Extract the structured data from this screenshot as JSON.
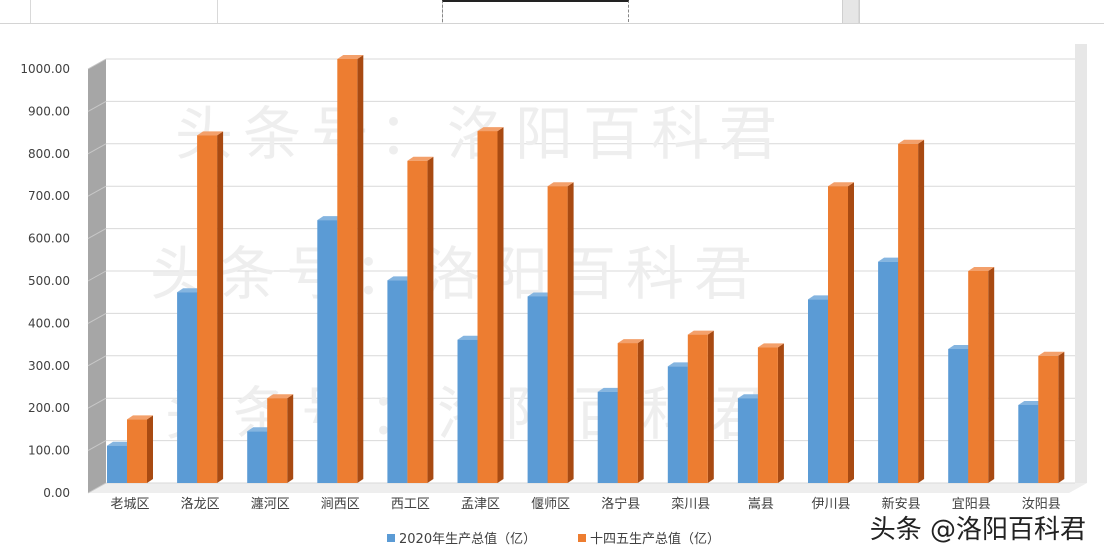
{
  "chart_data": {
    "type": "bar",
    "categories": [
      "老城区",
      "洛龙区",
      "瀍河区",
      "涧西区",
      "西工区",
      "孟津区",
      "偃师区",
      "洛宁县",
      "栾川县",
      "嵩县",
      "伊川县",
      "新安县",
      "宜阳县",
      "汝阳县"
    ],
    "series": [
      {
        "name": "2020年生产总值（亿）",
        "values": [
          88,
          450,
          122,
          620,
          478,
          338,
          440,
          215,
          275,
          200,
          433,
          522,
          316,
          184
        ]
      },
      {
        "name": "十四五生产总值（亿）",
        "values": [
          150,
          820,
          200,
          1000,
          760,
          830,
          700,
          330,
          350,
          320,
          700,
          800,
          500,
          300
        ]
      }
    ],
    "yticks": [
      "0.00",
      "100.00",
      "200.00",
      "300.00",
      "400.00",
      "500.00",
      "600.00",
      "700.00",
      "800.00",
      "900.00",
      "1000.00"
    ],
    "ylim": [
      0,
      1000
    ],
    "grid": true,
    "legend": "bottom",
    "colors": {
      "series1": "#5b9bd5",
      "series1_side": "#2e5f94",
      "series1_top": "#85b5e0",
      "series2": "#ed7d31",
      "series2_side": "#a84a12",
      "series2_top": "#f3a06b",
      "wall": "#a6a6a6",
      "grid": "#d9d9d9"
    },
    "watermark_text": "头条号：洛阳百科君"
  },
  "watermark": "头条 @洛阳百科君"
}
